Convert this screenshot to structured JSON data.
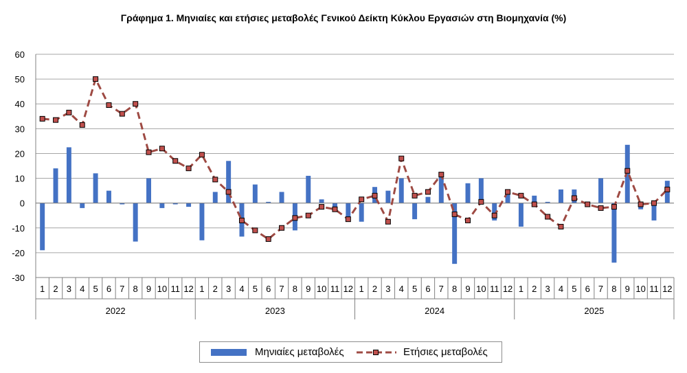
{
  "chart_data": {
    "type": "bar",
    "title": "Γράφημα 1. Μηνιαίες και ετήσιες μεταβολές  Γενικού Δείκτη Κύκλου Εργασιών στη Βιομηχανία (%)",
    "years": [
      "2022",
      "2023",
      "2024",
      "2025"
    ],
    "months": [
      "1",
      "2",
      "3",
      "4",
      "5",
      "6",
      "7",
      "8",
      "9",
      "10",
      "11",
      "12"
    ],
    "ylim": [
      -30,
      60
    ],
    "yticks": [
      -30,
      -20,
      -10,
      0,
      10,
      20,
      30,
      40,
      50,
      60
    ],
    "grid": true,
    "legend_position": "bottom",
    "colors": {
      "bars": "#4472c4",
      "line": "#9e4a43",
      "marker_fill": "#c0504d",
      "marker_edge": "#000000",
      "grid": "#a6a6a6"
    },
    "series": [
      {
        "name": "Μηνιαίες μεταβολές",
        "type": "bar",
        "values": [
          -19,
          14,
          22.5,
          -2,
          12,
          5,
          -0.5,
          -15.5,
          10,
          -2,
          -0.5,
          -1.5,
          -15,
          4.5,
          17,
          -13.5,
          7.5,
          0.5,
          4.5,
          -11,
          11,
          1.5,
          -1.5,
          -6.5,
          -7.5,
          6.5,
          5,
          10,
          -6.5,
          2.5,
          11,
          -24.5,
          8,
          10,
          -7,
          4.5,
          -9.5,
          3,
          0.5,
          5.5,
          5.5,
          -0.5,
          10,
          -24,
          23.5,
          -2.5,
          -7,
          9
        ]
      },
      {
        "name": "Ετήσιες μεταβολές",
        "type": "line",
        "values": [
          34,
          33.5,
          36.5,
          31.5,
          50,
          39.5,
          36,
          40,
          20.5,
          22,
          17,
          14,
          19.5,
          9.5,
          4.5,
          -7,
          -11,
          -14.5,
          -10,
          -6,
          -5,
          -1.5,
          -2.5,
          -6.5,
          1.5,
          3,
          -7.5,
          18,
          3,
          4.5,
          11.5,
          -4.5,
          -7,
          0.5,
          -5,
          4.5,
          3,
          -0.5,
          -5.5,
          -9.5,
          2,
          -0.5,
          -2,
          -1.5,
          13,
          -0.5,
          0,
          5.5
        ]
      }
    ]
  }
}
